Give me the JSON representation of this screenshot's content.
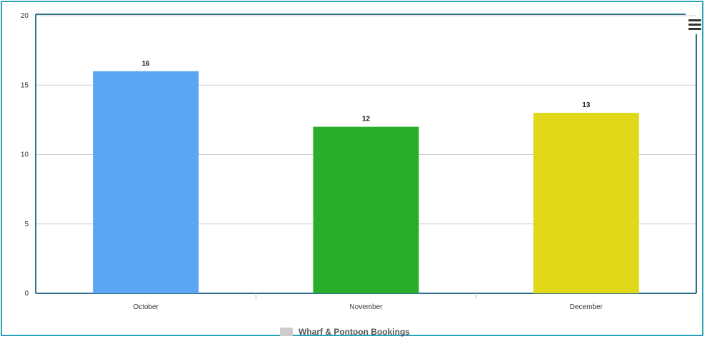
{
  "chart_data": {
    "type": "bar",
    "categories": [
      "October",
      "November",
      "December"
    ],
    "values": [
      16,
      12,
      13
    ],
    "bar_colors": [
      "#5ba6f2",
      "#2aad2a",
      "#e0d818"
    ],
    "ylim": [
      0,
      20
    ],
    "y_ticks": [
      0,
      5,
      10,
      15,
      20
    ],
    "data_labels": [
      "16",
      "12",
      "13"
    ],
    "grid": true,
    "legend": {
      "position": "bottom-center",
      "entries": [
        {
          "label": "Wharf & Pontoon Bookings",
          "color": "#cccccc"
        }
      ]
    },
    "title": "",
    "xlabel": "",
    "ylabel": ""
  },
  "menu": {
    "icon": "hamburger-menu-icon"
  },
  "colors": {
    "frame_border": "#2aa3b8",
    "axis": "#2e6f8e",
    "gridline": "#cfcfcf"
  }
}
